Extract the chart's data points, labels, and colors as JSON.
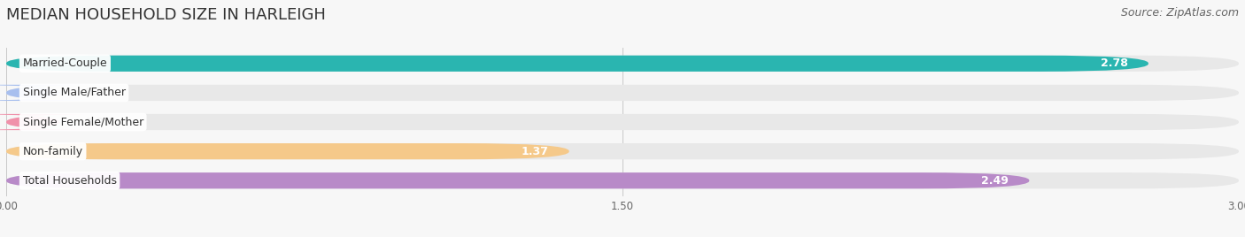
{
  "title": "MEDIAN HOUSEHOLD SIZE IN HARLEIGH",
  "source": "Source: ZipAtlas.com",
  "categories": [
    "Married-Couple",
    "Single Male/Father",
    "Single Female/Mother",
    "Non-family",
    "Total Households"
  ],
  "values": [
    2.78,
    0.0,
    0.0,
    1.37,
    2.49
  ],
  "bar_colors": [
    "#2ab5b0",
    "#a8bfee",
    "#f090aa",
    "#f5c98a",
    "#b88ac8"
  ],
  "bar_bg_color": "#e8e8e8",
  "label_bg_color": "#ffffff",
  "background_color": "#f7f7f7",
  "xlim": [
    0,
    3.0
  ],
  "xticks": [
    0.0,
    1.5,
    3.0
  ],
  "xtick_labels": [
    "0.00",
    "1.50",
    "3.00"
  ],
  "value_label_color": "#ffffff",
  "bar_height": 0.55,
  "bar_gap": 1.0,
  "title_fontsize": 13,
  "source_fontsize": 9,
  "label_fontsize": 9,
  "value_fontsize": 9
}
